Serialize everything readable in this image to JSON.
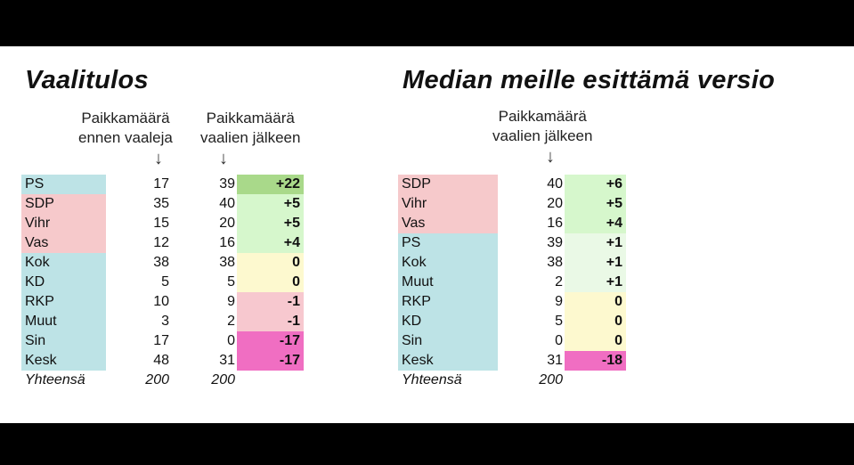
{
  "left": {
    "title": "Vaalitulos",
    "header_before": [
      "Paikkamäärä",
      "ennen vaaleja"
    ],
    "header_after": [
      "Paikkamäärä",
      "vaalien jälkeen"
    ],
    "rows": [
      {
        "party": "PS",
        "before": "17",
        "after": "39",
        "change": "+22",
        "party_color": "#bde3e6",
        "change_color": "#a9d98a"
      },
      {
        "party": "SDP",
        "before": "35",
        "after": "40",
        "change": "+5",
        "party_color": "#f6c9cb",
        "change_color": "#d6f7cc"
      },
      {
        "party": "Vihr",
        "before": "15",
        "after": "20",
        "change": "+5",
        "party_color": "#f6c9cb",
        "change_color": "#d6f7cc"
      },
      {
        "party": "Vas",
        "before": "12",
        "after": "16",
        "change": "+4",
        "party_color": "#f6c9cb",
        "change_color": "#d6f7cc"
      },
      {
        "party": "Kok",
        "before": "38",
        "after": "38",
        "change": "0",
        "party_color": "#bde3e6",
        "change_color": "#fdf9cf"
      },
      {
        "party": "KD",
        "before": "5",
        "after": "5",
        "change": "0",
        "party_color": "#bde3e6",
        "change_color": "#fdf9cf"
      },
      {
        "party": "RKP",
        "before": "10",
        "after": "9",
        "change": "-1",
        "party_color": "#bde3e6",
        "change_color": "#f7c8cf"
      },
      {
        "party": "Muut",
        "before": "3",
        "after": "2",
        "change": "-1",
        "party_color": "#bde3e6",
        "change_color": "#f7c8cf"
      },
      {
        "party": "Sin",
        "before": "17",
        "after": "0",
        "change": "-17",
        "party_color": "#bde3e6",
        "change_color": "#f06ec2"
      },
      {
        "party": "Kesk",
        "before": "48",
        "after": "31",
        "change": "-17",
        "party_color": "#bde3e6",
        "change_color": "#f06ec2"
      }
    ],
    "total": {
      "label": "Yhteensä",
      "before": "200",
      "after": "200"
    }
  },
  "right": {
    "title": "Median meille esittämä versio",
    "header_after": [
      "Paikkamäärä",
      "vaalien jälkeen"
    ],
    "rows": [
      {
        "party": "SDP",
        "after": "40",
        "change": "+6",
        "party_color": "#f6c9cb",
        "change_color": "#d6f7cc"
      },
      {
        "party": "Vihr",
        "after": "20",
        "change": "+5",
        "party_color": "#f6c9cb",
        "change_color": "#d6f7cc"
      },
      {
        "party": "Vas",
        "after": "16",
        "change": "+4",
        "party_color": "#f6c9cb",
        "change_color": "#d6f7cc"
      },
      {
        "party": "PS",
        "after": "39",
        "change": "+1",
        "party_color": "#bde3e6",
        "change_color": "#eaf9e6"
      },
      {
        "party": "Kok",
        "after": "38",
        "change": "+1",
        "party_color": "#bde3e6",
        "change_color": "#eaf9e6"
      },
      {
        "party": "Muut",
        "after": "2",
        "change": "+1",
        "party_color": "#bde3e6",
        "change_color": "#eaf9e6"
      },
      {
        "party": "RKP",
        "after": "9",
        "change": "0",
        "party_color": "#bde3e6",
        "change_color": "#fdf9cf"
      },
      {
        "party": "KD",
        "after": "5",
        "change": "0",
        "party_color": "#bde3e6",
        "change_color": "#fdf9cf"
      },
      {
        "party": "Sin",
        "after": "0",
        "change": "0",
        "party_color": "#bde3e6",
        "change_color": "#fdf9cf"
      },
      {
        "party": "Kesk",
        "after": "31",
        "change": "-18",
        "party_color": "#bde3e6",
        "change_color": "#f06ec2"
      }
    ],
    "total": {
      "label": "Yhteensä",
      "after": "200"
    }
  },
  "arrow_glyph": "↓"
}
